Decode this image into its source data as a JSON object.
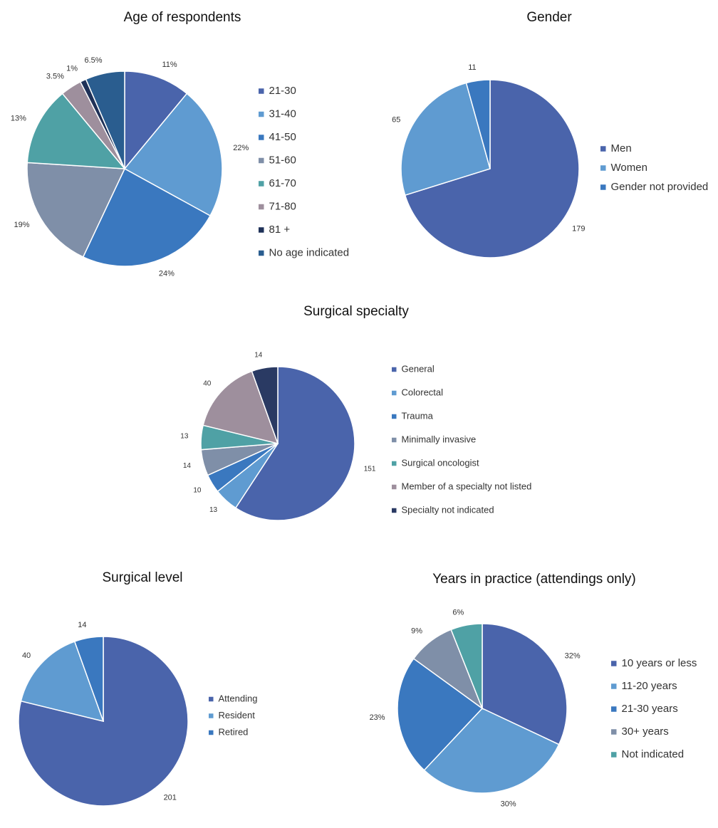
{
  "chart_data": [
    {
      "type": "pie",
      "title": "Age of respondents",
      "categories": [
        "21-30",
        "31-40",
        "41-50",
        "51-60",
        "61-70",
        "71-80",
        "81 +",
        "No age indicated"
      ],
      "values": [
        11,
        22,
        24,
        19,
        13,
        3.5,
        1,
        6.5
      ],
      "value_labels": [
        "11%",
        "22%",
        "24%",
        "19%",
        "13%",
        "3.5%",
        "1%",
        "6.5%"
      ],
      "colors": [
        "#4a64ab",
        "#5f9bd1",
        "#3a78bf",
        "#7f8fa8",
        "#4fa1a5",
        "#9e8f9d",
        "#1f3158",
        "#2a5d8f"
      ],
      "legend": "right"
    },
    {
      "type": "pie",
      "title": "Gender",
      "categories": [
        "Men",
        "Women",
        "Gender not provided"
      ],
      "values": [
        179,
        65,
        11
      ],
      "colors": [
        "#4a64ab",
        "#5f9bd1",
        "#3a78bf"
      ],
      "legend": "right"
    },
    {
      "type": "pie",
      "title": "Surgical specialty",
      "categories": [
        "General",
        "Colorectal",
        "Trauma",
        "Minimally invasive",
        "Surgical oncologist",
        "Member of a specialty not listed",
        "Specialty not indicated"
      ],
      "values": [
        151,
        13,
        10,
        14,
        13,
        40,
        14
      ],
      "colors": [
        "#4a64ab",
        "#5f9bd1",
        "#3a78bf",
        "#7f8fa8",
        "#4fa1a5",
        "#9e8f9d",
        "#2a3a63"
      ],
      "legend": "right"
    },
    {
      "type": "pie",
      "title": "Surgical level",
      "categories": [
        "Attending",
        "Resident",
        "Retired"
      ],
      "values": [
        201,
        40,
        14
      ],
      "colors": [
        "#4a64ab",
        "#5f9bd1",
        "#3a78bf"
      ],
      "legend": "right"
    },
    {
      "type": "pie",
      "title": "Years in practice (attendings only)",
      "categories": [
        "10 years or less",
        "11-20 years",
        "21-30 years",
        "30+ years",
        "Not indicated"
      ],
      "values": [
        32,
        30,
        23,
        9,
        6
      ],
      "value_labels": [
        "32%",
        "30%",
        "23%",
        "9%",
        "6%"
      ],
      "colors": [
        "#4a64ab",
        "#5f9bd1",
        "#3a78bf",
        "#7f8fa8",
        "#4fa1a5"
      ],
      "legend": "right"
    }
  ]
}
